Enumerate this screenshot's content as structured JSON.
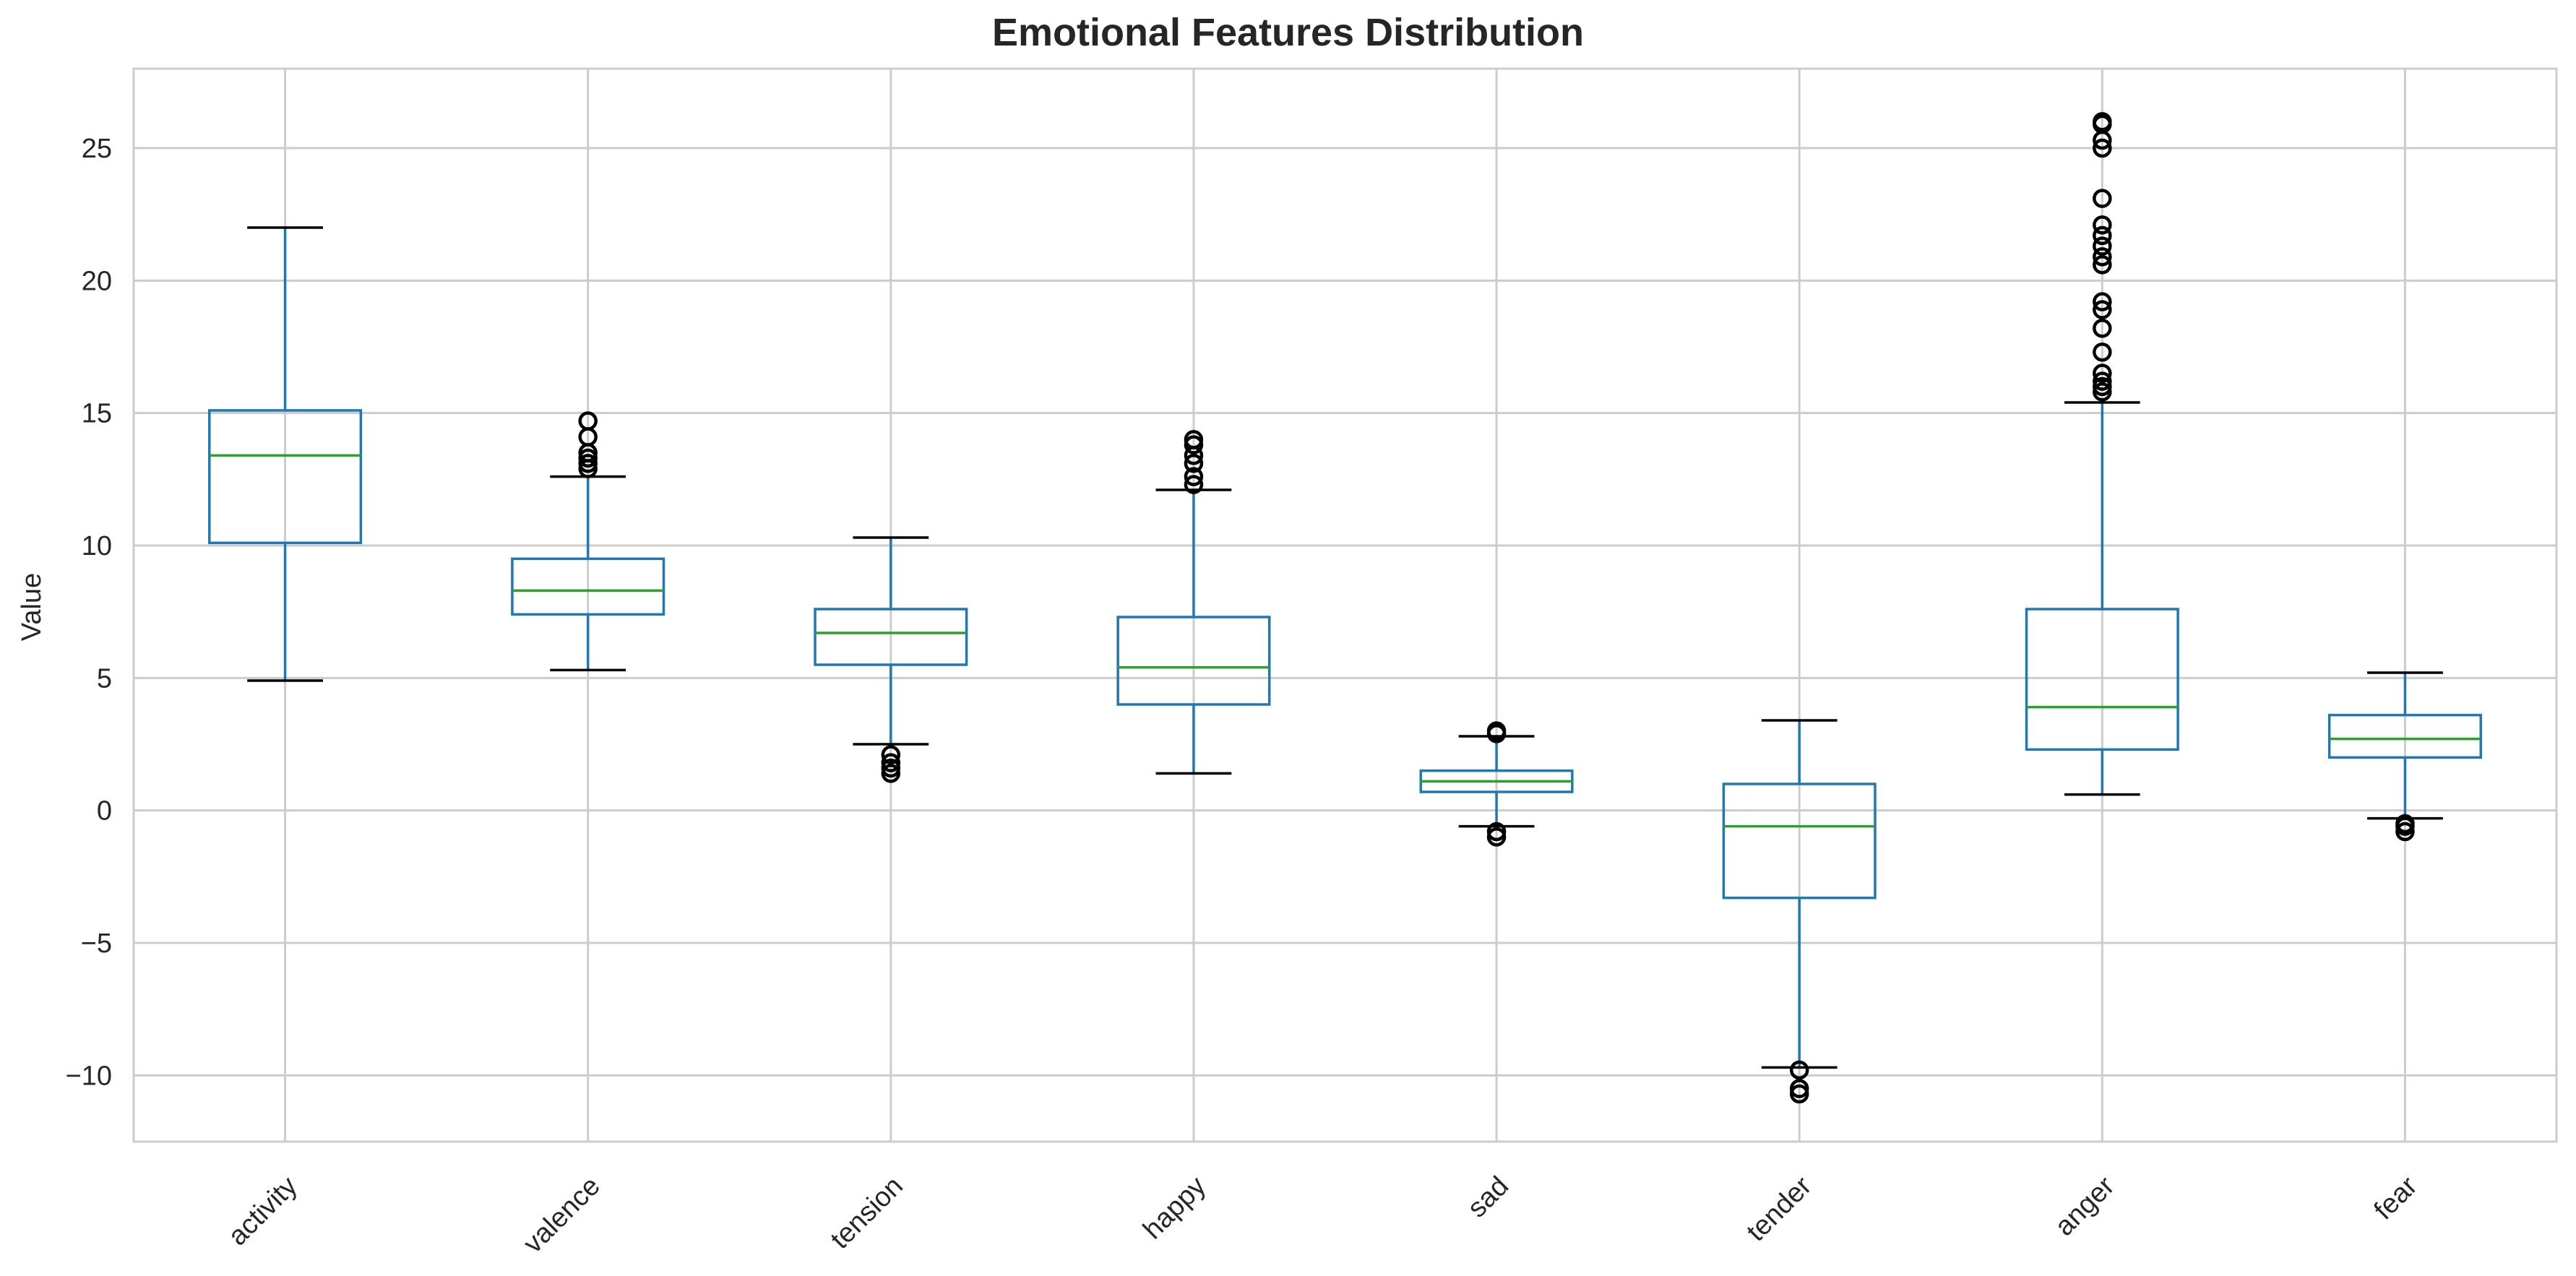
{
  "chart_data": {
    "type": "boxplot",
    "title": "Emotional Features Distribution",
    "xlabel": "",
    "ylabel": "Value",
    "ylim": [
      -12.5,
      28
    ],
    "yticks": [
      -10,
      -5,
      0,
      5,
      10,
      15,
      20,
      25
    ],
    "grid": true,
    "colors": {
      "box": "#1f77b4",
      "median": "#2ca02c",
      "whisker_cap": "#000000",
      "flier": "#000000",
      "grid": "#cccccc"
    },
    "series": [
      {
        "category": "activity",
        "whislo": 4.9,
        "q1": 10.1,
        "med": 13.4,
        "q3": 15.1,
        "whishi": 22.0,
        "fliers": []
      },
      {
        "category": "valence",
        "whislo": 5.3,
        "q1": 7.4,
        "med": 8.3,
        "q3": 9.5,
        "whishi": 12.6,
        "fliers": [
          12.9,
          13.1,
          13.3,
          13.5,
          14.1,
          14.7
        ]
      },
      {
        "category": "tension",
        "whislo": 2.5,
        "q1": 5.5,
        "med": 6.7,
        "q3": 7.6,
        "whishi": 10.3,
        "fliers": [
          2.1,
          1.8,
          1.6,
          1.4
        ]
      },
      {
        "category": "happy",
        "whislo": 1.4,
        "q1": 4.0,
        "med": 5.4,
        "q3": 7.3,
        "whishi": 12.1,
        "fliers": [
          12.3,
          12.6,
          13.1,
          13.4,
          13.8,
          14.0
        ]
      },
      {
        "category": "sad",
        "whislo": -0.6,
        "q1": 0.7,
        "med": 1.1,
        "q3": 1.5,
        "whishi": 2.8,
        "fliers": [
          2.9,
          3.0,
          -0.8,
          -1.0
        ]
      },
      {
        "category": "tender",
        "whislo": -9.7,
        "q1": -3.3,
        "med": -0.6,
        "q3": 1.0,
        "whishi": 3.4,
        "fliers": [
          -9.8,
          -10.5,
          -10.7
        ]
      },
      {
        "category": "anger",
        "whislo": 0.6,
        "q1": 2.3,
        "med": 3.9,
        "q3": 7.6,
        "whishi": 15.4,
        "fliers": [
          15.8,
          16.0,
          16.2,
          16.5,
          17.3,
          18.2,
          18.9,
          19.2,
          20.6,
          20.9,
          21.3,
          21.7,
          22.1,
          23.1,
          25.0,
          25.3,
          25.9,
          26.0
        ]
      },
      {
        "category": "fear",
        "whislo": -0.3,
        "q1": 2.0,
        "med": 2.7,
        "q3": 3.6,
        "whishi": 5.2,
        "fliers": [
          -0.5,
          -0.6,
          -0.8
        ]
      }
    ]
  }
}
